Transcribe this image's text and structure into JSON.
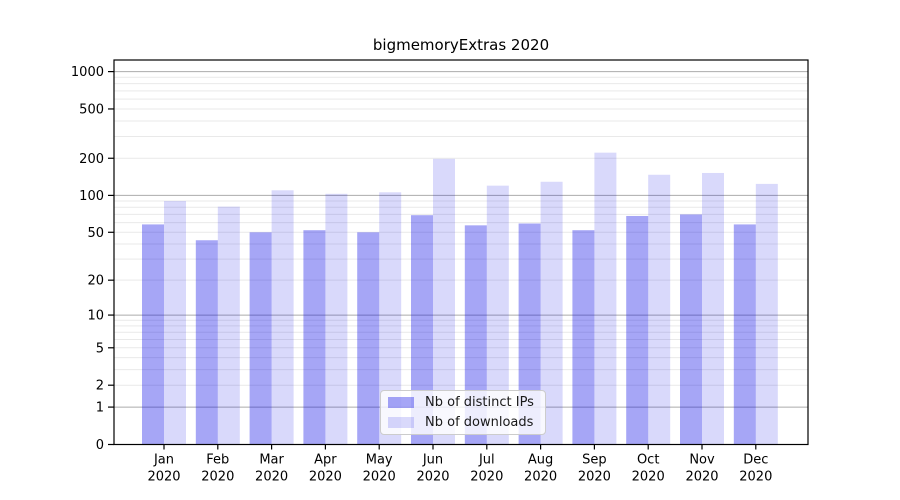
{
  "figure": {
    "background": "#ffffff"
  },
  "chart_data": {
    "type": "bar",
    "title": "bigmemoryExtras 2020",
    "categories": [
      "Jan 2020",
      "Feb 2020",
      "Mar 2020",
      "Apr 2020",
      "May 2020",
      "Jun 2020",
      "Jul 2020",
      "Aug 2020",
      "Sep 2020",
      "Oct 2020",
      "Nov 2020",
      "Dec 2020"
    ],
    "series": [
      {
        "name": "Nb of distinct IPs",
        "color": "rgba(0,0,230,0.35)",
        "values": [
          58,
          43,
          50,
          52,
          50,
          69,
          57,
          59,
          52,
          68,
          70,
          58
        ]
      },
      {
        "name": "Nb of downloads",
        "color": "rgba(0,0,230,0.15)",
        "values": [
          90,
          81,
          110,
          103,
          106,
          198,
          120,
          129,
          222,
          147,
          152,
          124
        ]
      }
    ],
    "yscale": "log1p",
    "ylim": [
      0,
      1240
    ],
    "yticks": [
      0,
      1,
      2,
      5,
      10,
      20,
      50,
      100,
      200,
      500,
      1000
    ],
    "grid": {
      "major_values": [
        1,
        10,
        100,
        1000
      ],
      "minor_multipliers": [
        2,
        3,
        4,
        5,
        6,
        7,
        8,
        9
      ],
      "major_color": "#ababab",
      "minor_color": "#e9e9e9"
    },
    "axis_color": "#000000",
    "tick_label_color": "#000000",
    "legend_position": "lower center",
    "xlabel": "",
    "ylabel": ""
  }
}
